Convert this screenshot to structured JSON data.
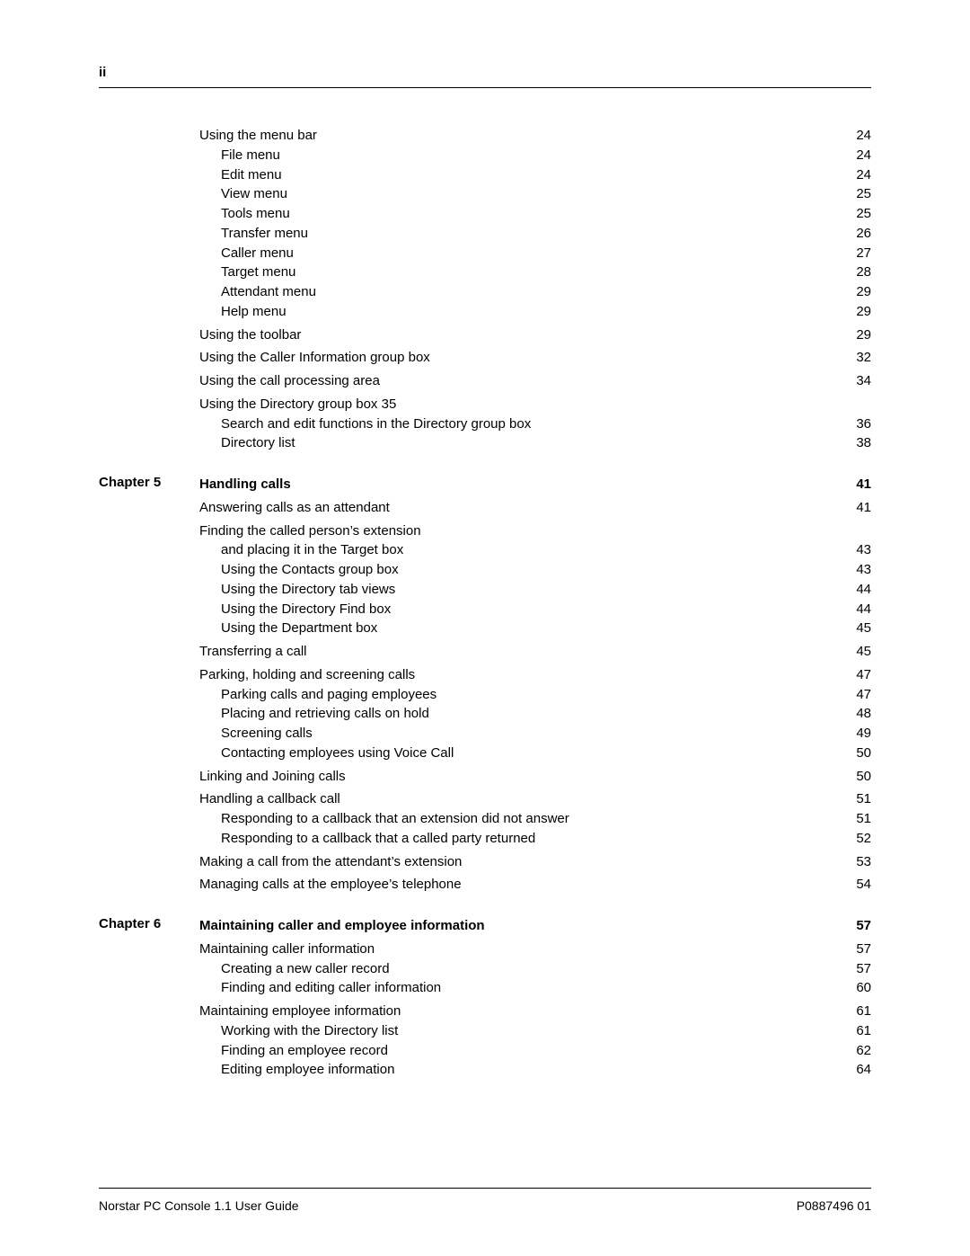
{
  "page_number_label": "ii",
  "footer_left": "Norstar PC Console 1.1 User Guide",
  "footer_right": "P0887496 01",
  "colors": {
    "background": "#ffffff",
    "text": "#000000",
    "rule": "#000000"
  },
  "typography": {
    "body_fontsize_pt": 11,
    "bold_entries": [
      "Handling calls",
      "Maintaining caller and employee information"
    ],
    "font_family": "Arial"
  },
  "toc": [
    {
      "chapter_label": "",
      "entries": [
        {
          "indent": 0,
          "title": "Using the menu bar",
          "page": "24"
        },
        {
          "indent": 1,
          "title": "File menu",
          "page": "24"
        },
        {
          "indent": 1,
          "title": "Edit menu",
          "page": "24"
        },
        {
          "indent": 1,
          "title": "View menu",
          "page": "25"
        },
        {
          "indent": 1,
          "title": "Tools menu",
          "page": "25"
        },
        {
          "indent": 1,
          "title": "Transfer menu",
          "page": "26"
        },
        {
          "indent": 1,
          "title": "Caller menu",
          "page": "27"
        },
        {
          "indent": 1,
          "title": "Target menu",
          "page": "28"
        },
        {
          "indent": 1,
          "title": "Attendant menu",
          "page": "29"
        },
        {
          "indent": 1,
          "title": "Help menu",
          "page": "29"
        },
        {
          "indent": 0,
          "title": "Using the toolbar",
          "page": "29",
          "gap_before": true
        },
        {
          "indent": 0,
          "title": "Using the Caller Information group box",
          "page": "32",
          "gap_before": true
        },
        {
          "indent": 0,
          "title": "Using the call processing area",
          "page": "34",
          "gap_before": true
        },
        {
          "indent": 0,
          "title": "Using the Directory group box 35",
          "page": "",
          "gap_before": true
        },
        {
          "indent": 1,
          "title": "Search and edit functions in the Directory group box",
          "page": "36"
        },
        {
          "indent": 1,
          "title": "Directory list",
          "page": "38"
        }
      ]
    },
    {
      "chapter_label": "Chapter 5",
      "entries": [
        {
          "indent": 0,
          "title": "Handling calls",
          "page": "41",
          "bold": true
        },
        {
          "indent": 0,
          "title": "Answering calls as an attendant",
          "page": "41",
          "gap_before": true
        },
        {
          "indent": 0,
          "title": "Finding the called person’s extension",
          "page": "",
          "gap_before": true
        },
        {
          "indent": 0,
          "title": "and placing it in the Target box",
          "page": "43",
          "continuation": true
        },
        {
          "indent": 1,
          "title": "Using the Contacts group box",
          "page": "43"
        },
        {
          "indent": 1,
          "title": "Using the Directory tab views",
          "page": "44"
        },
        {
          "indent": 1,
          "title": "Using the Directory Find box",
          "page": "44"
        },
        {
          "indent": 1,
          "title": "Using the Department box",
          "page": "45"
        },
        {
          "indent": 0,
          "title": "Transferring a call",
          "page": "45",
          "gap_before": true
        },
        {
          "indent": 0,
          "title": "Parking, holding and screening calls",
          "page": "47",
          "gap_before": true
        },
        {
          "indent": 1,
          "title": "Parking calls and paging employees",
          "page": "47"
        },
        {
          "indent": 1,
          "title": "Placing and retrieving calls on hold",
          "page": "48"
        },
        {
          "indent": 1,
          "title": "Screening calls",
          "page": "49"
        },
        {
          "indent": 1,
          "title": "Contacting employees using Voice Call",
          "page": "50"
        },
        {
          "indent": 0,
          "title": "Linking and Joining calls",
          "page": "50",
          "gap_before": true
        },
        {
          "indent": 0,
          "title": "Handling a callback call",
          "page": "51",
          "gap_before": true
        },
        {
          "indent": 1,
          "title": "Responding to a callback that an extension did not answer",
          "page": "51"
        },
        {
          "indent": 1,
          "title": "Responding to a callback that a called party returned",
          "page": "52"
        },
        {
          "indent": 0,
          "title": "Making a call from the attendant’s extension",
          "page": "53",
          "gap_before": true
        },
        {
          "indent": 0,
          "title": "Managing calls at the employee’s telephone",
          "page": "54",
          "gap_before": true
        }
      ]
    },
    {
      "chapter_label": "Chapter 6",
      "entries": [
        {
          "indent": 0,
          "title": "Maintaining caller and employee information",
          "page": "57",
          "bold": true
        },
        {
          "indent": 0,
          "title": "Maintaining caller information",
          "page": "57",
          "gap_before": true
        },
        {
          "indent": 1,
          "title": "Creating a new caller record",
          "page": "57"
        },
        {
          "indent": 1,
          "title": "Finding and editing caller information",
          "page": "60"
        },
        {
          "indent": 0,
          "title": "Maintaining employee information",
          "page": "61",
          "gap_before": true
        },
        {
          "indent": 1,
          "title": "Working with the Directory list",
          "page": "61"
        },
        {
          "indent": 1,
          "title": "Finding an employee record",
          "page": "62"
        },
        {
          "indent": 1,
          "title": "Editing employee information",
          "page": "64"
        }
      ]
    }
  ]
}
